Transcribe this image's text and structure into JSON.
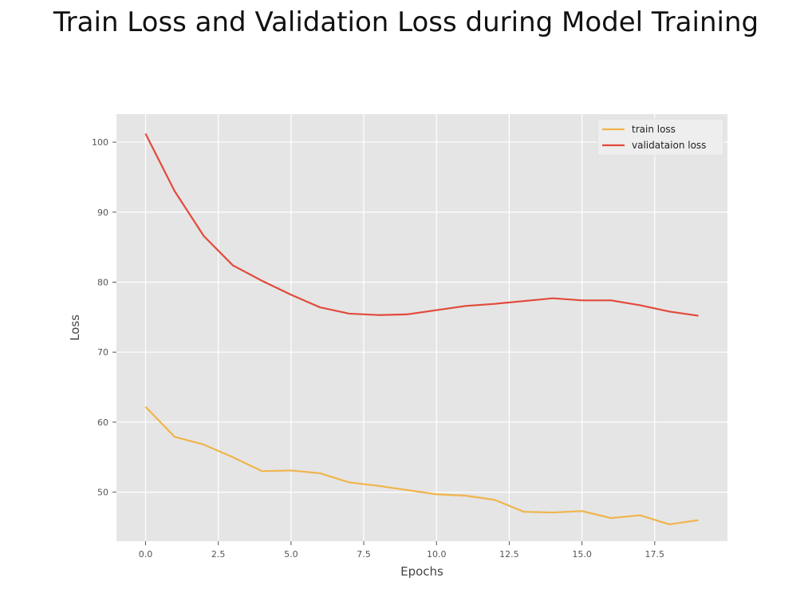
{
  "chart_data": {
    "type": "line",
    "title": "Train Loss and Validation Loss during Model Training",
    "xlabel": "Epochs",
    "ylabel": "Loss",
    "xlim": [
      -1,
      20
    ],
    "ylim": [
      43,
      104
    ],
    "x_ticks": [
      0.0,
      2.5,
      5.0,
      7.5,
      10.0,
      12.5,
      15.0,
      17.5
    ],
    "x_tick_labels": [
      "0.0",
      "2.5",
      "5.0",
      "7.5",
      "10.0",
      "12.5",
      "15.0",
      "17.5"
    ],
    "y_ticks": [
      50,
      60,
      70,
      80,
      90,
      100
    ],
    "y_tick_labels": [
      "50",
      "60",
      "70",
      "80",
      "90",
      "100"
    ],
    "grid": true,
    "legend_position": "top-right",
    "x": [
      0,
      1,
      2,
      3,
      4,
      5,
      6,
      7,
      8,
      9,
      10,
      11,
      12,
      13,
      14,
      15,
      16,
      17,
      18,
      19
    ],
    "series": [
      {
        "name": "train loss",
        "color": "#f0b44c",
        "values": [
          62.2,
          57.9,
          56.8,
          55.0,
          53.0,
          53.1,
          52.7,
          51.4,
          50.9,
          50.3,
          49.7,
          49.5,
          48.9,
          47.2,
          47.1,
          47.3,
          46.3,
          46.7,
          45.4,
          46.0
        ]
      },
      {
        "name": "validataion loss",
        "color": "#e24a3b",
        "values": [
          101.2,
          93.0,
          86.6,
          82.4,
          80.2,
          78.2,
          76.4,
          75.5,
          75.3,
          75.4,
          76.0,
          76.6,
          76.9,
          77.3,
          77.7,
          77.4,
          77.4,
          76.7,
          75.8,
          75.2
        ]
      }
    ],
    "colors": {
      "plot_background": "#e5e5e5",
      "grid": "#ffffff"
    }
  }
}
